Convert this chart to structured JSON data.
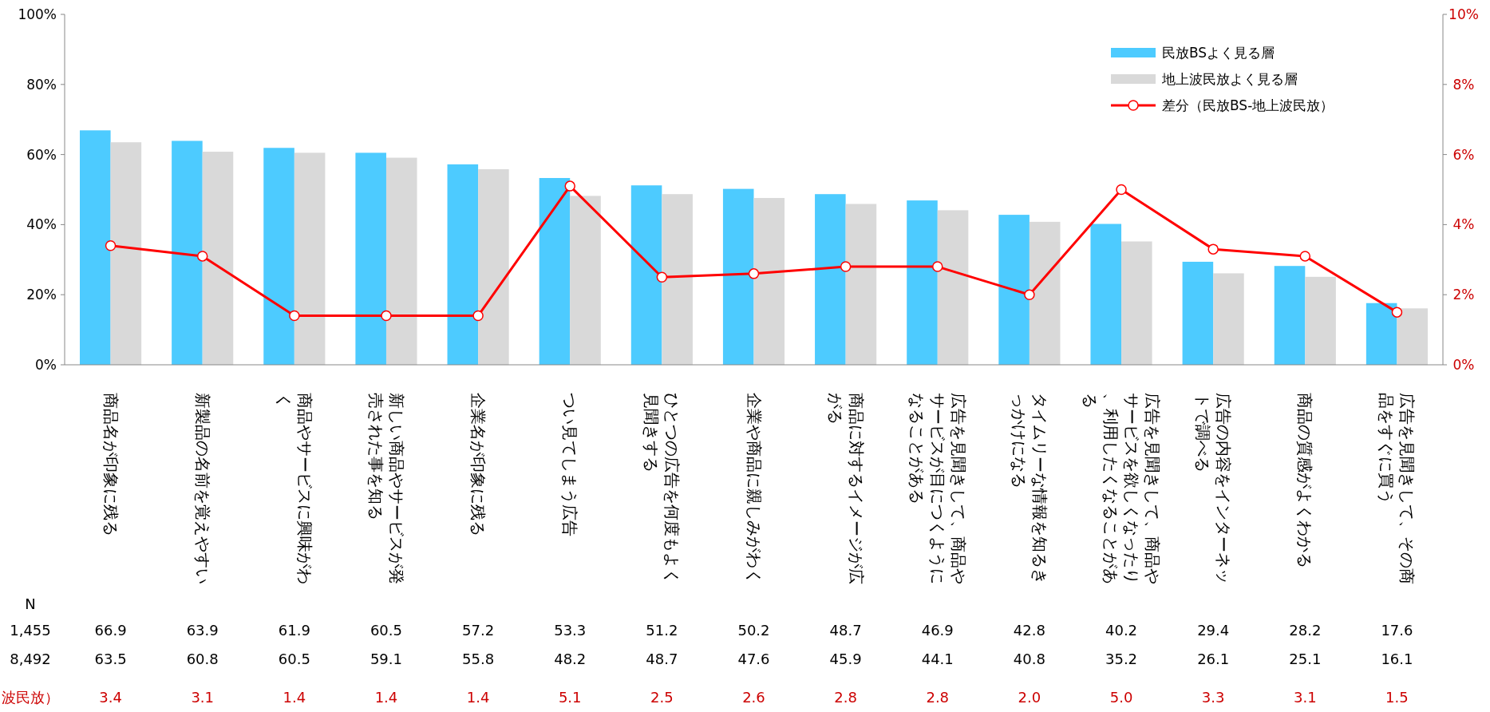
{
  "chart_data": {
    "type": "bar",
    "categories": [
      "商品名が印象に残る",
      "新製品の名前を覚えやすい",
      "商品やサービスに興味がわく",
      "新しい商品やサービスが発売された事を知る",
      "企業名が印象に残る",
      "つい見てしまう広告",
      "ひとつの広告を何度もよく見聞きする",
      "企業や商品に親しみがわく",
      "商品に対するイメージが広がる",
      "広告を見聞きして、商品やサービスが目につくようになることがある",
      "タイムリーな情報を知るきっかけになる",
      "広告を見聞きして、商品やサービスを欲しくなったり、利用したくなることがある",
      "広告の内容をインターネットで調べる",
      "商品の質感がよくわかる",
      "広告を見聞きして、その商品をすぐに買う"
    ],
    "series": [
      {
        "name": "民放BSよく見る層",
        "color": "#4dcbff",
        "values": [
          66.9,
          63.9,
          61.9,
          60.5,
          57.2,
          53.3,
          51.2,
          50.2,
          48.7,
          46.9,
          42.8,
          40.2,
          29.4,
          28.2,
          17.6
        ],
        "value_labels": [
          "66.9",
          "63.9",
          "61.9",
          "60.5",
          "57.2",
          "53.3",
          "51.2",
          "50.2",
          "48.7",
          "46.9",
          "42.8",
          "40.2",
          "29.4",
          "28.2",
          "17.6"
        ]
      },
      {
        "name": "地上波民放よく見る層",
        "color": "#d9d9d9",
        "values": [
          63.5,
          60.8,
          60.5,
          59.1,
          55.8,
          48.2,
          48.7,
          47.6,
          45.9,
          44.1,
          40.8,
          35.2,
          26.1,
          25.1,
          16.1
        ],
        "value_labels": [
          "63.5",
          "60.8",
          "60.5",
          "59.1",
          "55.8",
          "48.2",
          "48.7",
          "47.6",
          "45.9",
          "44.1",
          "40.8",
          "35.2",
          "26.1",
          "25.1",
          "16.1"
        ]
      },
      {
        "name": "差分（民放BS-地上波民放）",
        "type": "line",
        "axis": "y2",
        "color": "#ff0000",
        "values": [
          3.4,
          3.1,
          1.4,
          1.4,
          1.4,
          5.1,
          2.5,
          2.6,
          2.8,
          2.8,
          2.0,
          5.0,
          3.3,
          3.1,
          1.5
        ],
        "value_labels": [
          "3.4",
          "3.1",
          "1.4",
          "1.4",
          "1.4",
          "5.1",
          "2.5",
          "2.6",
          "2.8",
          "2.8",
          "2.0",
          "5.0",
          "3.3",
          "3.1",
          "1.5"
        ]
      }
    ],
    "ylim": [
      0,
      100
    ],
    "yticks": [
      {
        "value": 0,
        "label": "0%"
      },
      {
        "value": 20,
        "label": "20%"
      },
      {
        "value": 40,
        "label": "40%"
      },
      {
        "value": 60,
        "label": "60%"
      },
      {
        "value": 80,
        "label": "80%"
      },
      {
        "value": 100,
        "label": "100%"
      }
    ],
    "y2lim": [
      0,
      10
    ],
    "y2ticks": [
      {
        "value": 0,
        "label": "0%"
      },
      {
        "value": 2,
        "label": "2%"
      },
      {
        "value": 4,
        "label": "4%"
      },
      {
        "value": 6,
        "label": "6%"
      },
      {
        "value": 8,
        "label": "8%"
      },
      {
        "value": 10,
        "label": "10%"
      }
    ],
    "marker": "circle",
    "legend": "top right",
    "annotations": [
      "N",
      "1,455",
      "8,492",
      "波民放）"
    ]
  }
}
